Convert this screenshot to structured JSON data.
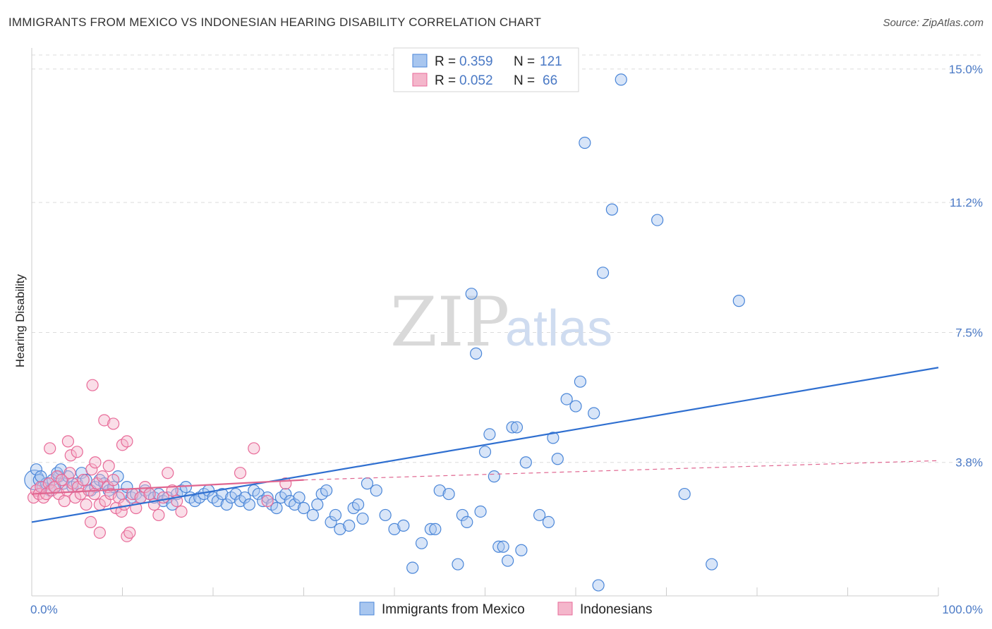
{
  "header": {
    "title": "IMMIGRANTS FROM MEXICO VS INDONESIAN HEARING DISABILITY CORRELATION CHART",
    "source": "Source: ZipAtlas.com"
  },
  "watermark": {
    "zip": "ZIP",
    "atlas": "atlas"
  },
  "legend": {
    "rows": [
      {
        "r_label": "R =",
        "r_value": "0.359",
        "n_label": "N =",
        "n_value": "121",
        "color": "#a8c6ef"
      },
      {
        "r_label": "R =",
        "r_value": "0.052",
        "n_label": "N =",
        "n_value": "66",
        "color": "#f4b6cb"
      }
    ]
  },
  "bottom_legend": [
    {
      "label": "Immigrants from Mexico",
      "color": "#a8c6ef"
    },
    {
      "label": "Indonesians",
      "color": "#f4b6cb"
    }
  ],
  "chart_data": {
    "type": "scatter",
    "xlabel": "",
    "ylabel": "Hearing Disability",
    "xlim": [
      0,
      100
    ],
    "ylim": [
      0,
      15.4
    ],
    "x_tick_labels": [
      {
        "value": 0,
        "label": "0.0%"
      },
      {
        "value": 100,
        "label": "100.0%"
      }
    ],
    "y_tick_labels": [
      {
        "value": 3.8,
        "label": "3.8%"
      },
      {
        "value": 7.5,
        "label": "7.5%"
      },
      {
        "value": 11.2,
        "label": "11.2%"
      },
      {
        "value": 15.0,
        "label": "15.0%"
      }
    ],
    "grid": "horizontal dashed",
    "colors": {
      "mexico": "#4a86d8",
      "mexico_fill": "#a8c6ef",
      "indonesian": "#e86a98",
      "indonesian_fill": "#f4b6cb",
      "trend_mexico": "#2f6fd0",
      "trend_indonesian": "#e06690"
    },
    "series": [
      {
        "name": "Immigrants from Mexico",
        "trend": {
          "x": [
            0,
            100
          ],
          "y": [
            2.1,
            6.5
          ]
        },
        "points": [
          [
            0.3,
            3.3
          ],
          [
            0.8,
            3.3
          ],
          [
            1.2,
            3.1
          ],
          [
            1.6,
            3.2
          ],
          [
            2.0,
            3.0
          ],
          [
            2.3,
            3.3
          ],
          [
            2.6,
            3.1
          ],
          [
            3.0,
            3.4
          ],
          [
            3.5,
            3.2
          ],
          [
            4.0,
            3.4
          ],
          [
            4.5,
            3.1
          ],
          [
            5.0,
            3.2
          ],
          [
            5.5,
            3.5
          ],
          [
            6.0,
            3.3
          ],
          [
            6.5,
            3.0
          ],
          [
            7.0,
            3.1
          ],
          [
            7.5,
            3.3
          ],
          [
            8.0,
            3.2
          ],
          [
            8.5,
            3.0
          ],
          [
            9.0,
            3.1
          ],
          [
            9.5,
            3.4
          ],
          [
            10.0,
            2.9
          ],
          [
            10.5,
            3.1
          ],
          [
            11.0,
            2.8
          ],
          [
            11.5,
            2.9
          ],
          [
            12.0,
            2.8
          ],
          [
            12.5,
            3.0
          ],
          [
            13.0,
            2.9
          ],
          [
            13.5,
            2.8
          ],
          [
            14.0,
            2.9
          ],
          [
            14.5,
            2.7
          ],
          [
            15.0,
            2.8
          ],
          [
            15.5,
            2.6
          ],
          [
            16.0,
            2.9
          ],
          [
            16.5,
            3.0
          ],
          [
            17.0,
            3.1
          ],
          [
            17.5,
            2.8
          ],
          [
            18.0,
            2.7
          ],
          [
            18.5,
            2.8
          ],
          [
            19.0,
            2.9
          ],
          [
            19.5,
            3.0
          ],
          [
            20.0,
            2.8
          ],
          [
            20.5,
            2.7
          ],
          [
            21.0,
            2.9
          ],
          [
            21.5,
            2.6
          ],
          [
            22.0,
            2.8
          ],
          [
            22.5,
            2.9
          ],
          [
            23.0,
            2.7
          ],
          [
            23.5,
            2.8
          ],
          [
            24.0,
            2.6
          ],
          [
            24.5,
            3.0
          ],
          [
            25.0,
            2.9
          ],
          [
            25.5,
            2.7
          ],
          [
            26.0,
            2.8
          ],
          [
            26.5,
            2.6
          ],
          [
            27.0,
            2.5
          ],
          [
            27.5,
            2.8
          ],
          [
            28.0,
            2.9
          ],
          [
            28.5,
            2.7
          ],
          [
            29.0,
            2.6
          ],
          [
            29.5,
            2.8
          ],
          [
            30.0,
            2.5
          ],
          [
            31.0,
            2.3
          ],
          [
            31.5,
            2.6
          ],
          [
            32.0,
            2.9
          ],
          [
            32.5,
            3.0
          ],
          [
            33.0,
            2.1
          ],
          [
            33.5,
            2.3
          ],
          [
            34.0,
            1.9
          ],
          [
            35.0,
            2.0
          ],
          [
            35.5,
            2.5
          ],
          [
            36.0,
            2.6
          ],
          [
            36.5,
            2.2
          ],
          [
            37.0,
            3.2
          ],
          [
            38.0,
            3.0
          ],
          [
            39.0,
            2.3
          ],
          [
            40.0,
            1.9
          ],
          [
            41.0,
            2.0
          ],
          [
            42.0,
            0.8
          ],
          [
            43.0,
            1.5
          ],
          [
            44.0,
            1.9
          ],
          [
            44.5,
            1.9
          ],
          [
            45.0,
            3.0
          ],
          [
            46.0,
            2.9
          ],
          [
            47.0,
            0.9
          ],
          [
            47.5,
            2.3
          ],
          [
            48.0,
            2.1
          ],
          [
            48.5,
            8.6
          ],
          [
            49.0,
            6.9
          ],
          [
            49.5,
            2.4
          ],
          [
            50.0,
            4.1
          ],
          [
            50.5,
            4.6
          ],
          [
            51.0,
            3.4
          ],
          [
            51.5,
            1.4
          ],
          [
            52.0,
            1.4
          ],
          [
            52.5,
            1.0
          ],
          [
            53.0,
            4.8
          ],
          [
            53.5,
            4.8
          ],
          [
            54.0,
            1.3
          ],
          [
            54.5,
            3.8
          ],
          [
            56.0,
            2.3
          ],
          [
            57.0,
            2.1
          ],
          [
            57.5,
            4.5
          ],
          [
            58.0,
            3.9
          ],
          [
            59.0,
            5.6
          ],
          [
            60.0,
            5.4
          ],
          [
            60.5,
            6.1
          ],
          [
            61.0,
            12.9
          ],
          [
            62.0,
            5.2
          ],
          [
            62.5,
            0.3
          ],
          [
            63.0,
            9.2
          ],
          [
            64.0,
            11.0
          ],
          [
            65.0,
            14.7
          ],
          [
            69.0,
            10.7
          ],
          [
            72.0,
            2.9
          ],
          [
            75.0,
            0.9
          ],
          [
            78.0,
            8.4
          ],
          [
            0.5,
            3.6
          ],
          [
            1.0,
            3.4
          ],
          [
            2.8,
            3.5
          ],
          [
            3.2,
            3.6
          ]
        ]
      },
      {
        "name": "Indonesians",
        "trend": {
          "x": [
            0,
            30
          ],
          "y": [
            2.9,
            3.3
          ]
        },
        "trend_extension": {
          "x": [
            30,
            100
          ],
          "y": [
            3.3,
            3.85
          ]
        },
        "points": [
          [
            0.2,
            2.8
          ],
          [
            0.5,
            3.0
          ],
          [
            0.8,
            2.9
          ],
          [
            1.0,
            3.1
          ],
          [
            1.3,
            2.8
          ],
          [
            1.6,
            2.9
          ],
          [
            1.9,
            3.2
          ],
          [
            2.2,
            3.0
          ],
          [
            2.5,
            3.1
          ],
          [
            2.8,
            3.4
          ],
          [
            3.0,
            2.9
          ],
          [
            3.3,
            3.3
          ],
          [
            3.6,
            2.7
          ],
          [
            3.9,
            3.0
          ],
          [
            4.2,
            3.5
          ],
          [
            4.5,
            3.2
          ],
          [
            4.8,
            2.8
          ],
          [
            5.1,
            3.1
          ],
          [
            5.4,
            2.9
          ],
          [
            5.7,
            3.3
          ],
          [
            6.0,
            2.6
          ],
          [
            6.3,
            3.0
          ],
          [
            6.6,
            3.6
          ],
          [
            6.9,
            2.9
          ],
          [
            7.2,
            3.2
          ],
          [
            7.5,
            2.6
          ],
          [
            7.8,
            3.4
          ],
          [
            8.1,
            2.7
          ],
          [
            8.4,
            3.1
          ],
          [
            8.7,
            2.9
          ],
          [
            9.0,
            3.3
          ],
          [
            9.3,
            2.5
          ],
          [
            9.6,
            2.8
          ],
          [
            9.9,
            2.4
          ],
          [
            10.2,
            2.6
          ],
          [
            10.5,
            1.7
          ],
          [
            10.8,
            1.8
          ],
          [
            11.1,
            2.9
          ],
          [
            11.5,
            2.5
          ],
          [
            12.0,
            2.8
          ],
          [
            12.5,
            3.1
          ],
          [
            13.0,
            2.9
          ],
          [
            13.5,
            2.6
          ],
          [
            14.0,
            2.3
          ],
          [
            14.5,
            2.8
          ],
          [
            15.0,
            3.5
          ],
          [
            15.5,
            3.0
          ],
          [
            16.0,
            2.7
          ],
          [
            6.7,
            6.0
          ],
          [
            8.0,
            5.0
          ],
          [
            9.0,
            4.9
          ],
          [
            10.0,
            4.3
          ],
          [
            10.5,
            4.4
          ],
          [
            2.0,
            4.2
          ],
          [
            4.0,
            4.4
          ],
          [
            4.3,
            4.0
          ],
          [
            5.0,
            4.1
          ],
          [
            7.0,
            3.8
          ],
          [
            8.5,
            3.7
          ],
          [
            16.5,
            2.4
          ],
          [
            23.0,
            3.5
          ],
          [
            24.5,
            4.2
          ],
          [
            28.0,
            3.2
          ],
          [
            26.0,
            2.7
          ],
          [
            6.5,
            2.1
          ],
          [
            7.5,
            1.8
          ]
        ]
      }
    ]
  }
}
